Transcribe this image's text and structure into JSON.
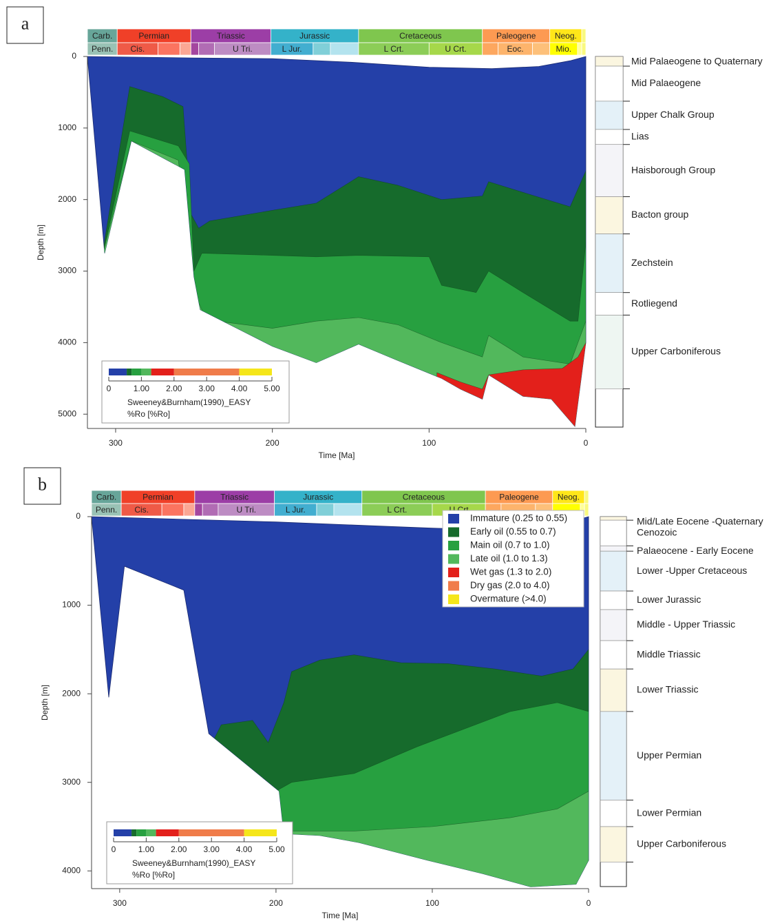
{
  "chart_data": [
    {
      "label": "a",
      "type": "burial",
      "xlabel": "Time [Ma]",
      "ylabel": "Depth [m]",
      "xlim": [
        318,
        0
      ],
      "ylim": [
        0,
        5200
      ],
      "xticks": [
        300,
        200,
        100,
        0
      ],
      "yticks": [
        0,
        1000,
        2000,
        3000,
        4000,
        5000
      ],
      "periods": [
        {
          "name": "Carb.",
          "color": "#67a599",
          "start": 318,
          "end": 299
        },
        {
          "name": "Permian",
          "color": "#f04028",
          "start": 299,
          "end": 252
        },
        {
          "name": "Triassic",
          "color": "#9c3ea6",
          "start": 252,
          "end": 201
        },
        {
          "name": "Jurassic",
          "color": "#34b2c9",
          "start": 201,
          "end": 145
        },
        {
          "name": "Cretaceous",
          "color": "#7fc64e",
          "start": 145,
          "end": 66
        },
        {
          "name": "Paleogene",
          "color": "#fd9a52",
          "start": 66,
          "end": 23
        },
        {
          "name": "Neog.",
          "color": "#ffe619",
          "start": 23,
          "end": 2.6
        },
        {
          "name": null,
          "color": "#f9f97f",
          "start": 2.6,
          "end": 0
        }
      ],
      "epochs": [
        {
          "name": "Penn.",
          "color": "#99c2b5",
          "start": 318,
          "end": 299
        },
        {
          "name": "Cis.",
          "color": "#ef5a47",
          "start": 299,
          "end": 273
        },
        {
          "name": null,
          "color": "#fb7460",
          "start": 273,
          "end": 259
        },
        {
          "name": null,
          "color": "#fba794",
          "start": 259,
          "end": 252
        },
        {
          "name": null,
          "color": "#a4469f",
          "start": 252,
          "end": 247
        },
        {
          "name": null,
          "color": "#b16cb4",
          "start": 247,
          "end": 237
        },
        {
          "name": "U Tri.",
          "color": "#bd8cc3",
          "start": 237,
          "end": 201
        },
        {
          "name": "L Jur.",
          "color": "#42aed0",
          "start": 201,
          "end": 174
        },
        {
          "name": null,
          "color": "#80cfd8",
          "start": 174,
          "end": 163
        },
        {
          "name": null,
          "color": "#b3e3ee",
          "start": 163,
          "end": 145
        },
        {
          "name": "L Crt.",
          "color": "#8ccd57",
          "start": 145,
          "end": 100
        },
        {
          "name": "U Crt.",
          "color": "#a6d84a",
          "start": 100,
          "end": 66
        },
        {
          "name": null,
          "color": "#fda75f",
          "start": 66,
          "end": 56
        },
        {
          "name": "Eoc.",
          "color": "#fdb46c",
          "start": 56,
          "end": 34
        },
        {
          "name": null,
          "color": "#fdc07a",
          "start": 34,
          "end": 23
        },
        {
          "name": "Mio.",
          "color": "#ffff00",
          "start": 23,
          "end": 5.3
        },
        {
          "name": null,
          "color": "#ffff99",
          "start": 5.3,
          "end": 2.6
        },
        {
          "name": null,
          "color": "#f9f97f",
          "start": 2.6,
          "end": 0
        }
      ],
      "envelope": {
        "color": "#2440a8",
        "x": [
          318,
          250,
          200,
          150,
          100,
          60,
          30,
          10,
          0,
          0,
          7,
          22,
          40,
          62,
          66,
          80,
          92,
          120,
          145,
          172,
          200,
          246,
          250,
          256,
          290,
          307
        ],
        "y": [
          0,
          20,
          30,
          80,
          150,
          170,
          140,
          60,
          0,
          4000,
          5170,
          4790,
          4750,
          4450,
          4790,
          4650,
          4500,
          4250,
          4020,
          4280,
          4050,
          3540,
          3080,
          1580,
          1180,
          2750
        ]
      },
      "zones": [
        {
          "color": "#166b2c",
          "x": [
            308,
            291,
            270,
            257,
            252,
            247,
            240,
            200,
            172,
            145,
            120,
            92,
            66,
            62,
            40,
            10,
            0
          ],
          "y": [
            2700,
            420,
            560,
            700,
            2200,
            2400,
            2300,
            2150,
            2050,
            1680,
            1800,
            2000,
            1950,
            1750,
            1900,
            2100,
            1600
          ]
        },
        {
          "color": "#27a040",
          "x": [
            308,
            291,
            260,
            253,
            250,
            245,
            200,
            172,
            145,
            100,
            92,
            70,
            62,
            40,
            10,
            5,
            0
          ],
          "y": [
            2750,
            1040,
            1250,
            1500,
            3000,
            2750,
            2780,
            2800,
            2780,
            2800,
            3200,
            3300,
            3000,
            3300,
            3700,
            3700,
            2600
          ]
        },
        {
          "color": "#52b85c",
          "x": [
            308,
            290,
            260,
            250,
            242,
            200,
            172,
            145,
            120,
            92,
            66,
            62,
            40,
            10,
            0
          ],
          "y": [
            2750,
            1180,
            1450,
            3300,
            3680,
            3800,
            3700,
            3650,
            3750,
            4000,
            4200,
            3900,
            4200,
            4300,
            3700
          ]
        },
        {
          "color": "#e3201b",
          "x": [
            95,
            80,
            66,
            62,
            40,
            15,
            5,
            0
          ],
          "y": [
            4420,
            4550,
            4650,
            4450,
            4380,
            4360,
            4200,
            4000
          ]
        }
      ],
      "colorbar": {
        "lim": [
          0,
          5
        ],
        "stops": [
          0,
          0.55,
          0.7,
          1.0,
          1.3,
          2.0,
          4.0,
          5.0
        ],
        "colors": [
          "#2440a8",
          "#166b2c",
          "#27a040",
          "#52b85c",
          "#e3201b",
          "#f07c4a",
          "#f5e61a"
        ],
        "ticks": [
          0,
          {
            "value": 1,
            "label": "1.00"
          },
          {
            "value": 2,
            "label": "2.00"
          },
          {
            "value": 3,
            "label": "3.00"
          },
          {
            "value": 4,
            "label": "4.00"
          },
          {
            "value": 5,
            "label": "5.00"
          }
        ],
        "label": "Sweeney&Burnham(1990)_EASY",
        "unit": "%Ro [%Ro]"
      },
      "column": [
        {
          "name": "Mid Palaeogene to Quaternary",
          "top": 0,
          "base": 135,
          "color": "#fbf6e0"
        },
        {
          "name": "Mid Palaeogene",
          "top": 135,
          "base": 625,
          "color": "#ffffff"
        },
        {
          "name": "Upper Chalk Group",
          "top": 625,
          "base": 1020,
          "color": "#e4f1f8"
        },
        {
          "name": "Lias",
          "top": 1020,
          "base": 1230,
          "color": "#ffffff"
        },
        {
          "name": "Haisborough Group",
          "top": 1230,
          "base": 1960,
          "color": "#f4f4f8"
        },
        {
          "name": "Bacton group",
          "top": 1960,
          "base": 2480,
          "color": "#fbf6e0"
        },
        {
          "name": "Zechstein",
          "top": 2480,
          "base": 3300,
          "color": "#e4f1f8"
        },
        {
          "name": "Rotliegend",
          "top": 3300,
          "base": 3615,
          "color": "#ffffff"
        },
        {
          "name": "Upper Carboniferous",
          "top": 3615,
          "base": 4645,
          "color": "#eef6f2"
        }
      ]
    },
    {
      "label": "b",
      "type": "burial",
      "xlabel": "Time [Ma]",
      "ylabel": "Depth [m]",
      "xlim": [
        318,
        0
      ],
      "ylim": [
        0,
        4200
      ],
      "xticks": [
        300,
        200,
        100,
        0
      ],
      "yticks": [
        0,
        1000,
        2000,
        3000,
        4000
      ],
      "periods": [
        {
          "name": "Carb.",
          "color": "#67a599",
          "start": 318,
          "end": 299
        },
        {
          "name": "Permian",
          "color": "#f04028",
          "start": 299,
          "end": 252
        },
        {
          "name": "Triassic",
          "color": "#9c3ea6",
          "start": 252,
          "end": 201
        },
        {
          "name": "Jurassic",
          "color": "#34b2c9",
          "start": 201,
          "end": 145
        },
        {
          "name": "Cretaceous",
          "color": "#7fc64e",
          "start": 145,
          "end": 66
        },
        {
          "name": "Paleogene",
          "color": "#fd9a52",
          "start": 66,
          "end": 23
        },
        {
          "name": "Neog.",
          "color": "#ffe619",
          "start": 23,
          "end": 2.6
        },
        {
          "name": null,
          "color": "#f9f97f",
          "start": 2.6,
          "end": 0
        }
      ],
      "epochs": [
        {
          "name": "Penn.",
          "color": "#99c2b5",
          "start": 318,
          "end": 299
        },
        {
          "name": "Cis.",
          "color": "#ef5a47",
          "start": 299,
          "end": 273
        },
        {
          "name": null,
          "color": "#fb7460",
          "start": 273,
          "end": 259
        },
        {
          "name": null,
          "color": "#fba794",
          "start": 259,
          "end": 252
        },
        {
          "name": null,
          "color": "#a4469f",
          "start": 252,
          "end": 247
        },
        {
          "name": null,
          "color": "#b16cb4",
          "start": 247,
          "end": 237
        },
        {
          "name": "U Tri.",
          "color": "#bd8cc3",
          "start": 237,
          "end": 201
        },
        {
          "name": "L Jur.",
          "color": "#42aed0",
          "start": 201,
          "end": 174
        },
        {
          "name": null,
          "color": "#80cfd8",
          "start": 174,
          "end": 163
        },
        {
          "name": null,
          "color": "#b3e3ee",
          "start": 163,
          "end": 145
        },
        {
          "name": "L Crt.",
          "color": "#8ccd57",
          "start": 145,
          "end": 100
        },
        {
          "name": "U Crt",
          "color": "#a6d84a",
          "start": 100,
          "end": 66
        },
        {
          "name": null,
          "color": "#fda75f",
          "start": 66,
          "end": 56
        },
        {
          "name": null,
          "color": "#fdb46c",
          "start": 56,
          "end": 34
        },
        {
          "name": null,
          "color": "#fdc07a",
          "start": 34,
          "end": 23
        },
        {
          "name": null,
          "color": "#ffff00",
          "start": 23,
          "end": 5.3
        },
        {
          "name": null,
          "color": "#ffff99",
          "start": 5.3,
          "end": 2.6
        },
        {
          "name": null,
          "color": "#f9f97f",
          "start": 2.6,
          "end": 0
        }
      ],
      "envelope": {
        "color": "#2440a8",
        "x": [
          318,
          200,
          100,
          50,
          20,
          0,
          0,
          8,
          37,
          68,
          103,
          147,
          172,
          195,
          198,
          243,
          259,
          297,
          307
        ],
        "y": [
          0,
          60,
          130,
          150,
          100,
          0,
          3880,
          4150,
          4180,
          4030,
          3880,
          3680,
          3600,
          3580,
          3100,
          2450,
          830,
          560,
          2040
        ]
      },
      "zones": [
        {
          "color": "#166b2c",
          "x": [
            245,
            235,
            215,
            205,
            195,
            190,
            172,
            150,
            120,
            90,
            60,
            30,
            10,
            0
          ],
          "y": [
            2700,
            2350,
            2300,
            2550,
            2100,
            1750,
            1620,
            1560,
            1650,
            1660,
            1720,
            1800,
            1720,
            1500
          ]
        },
        {
          "color": "#27a040",
          "x": [
            210,
            190,
            150,
            110,
            80,
            50,
            20,
            0
          ],
          "y": [
            3200,
            3000,
            2900,
            2600,
            2400,
            2200,
            2100,
            2200
          ]
        },
        {
          "color": "#52b85c",
          "x": [
            195,
            150,
            100,
            50,
            20,
            0
          ],
          "y": [
            3550,
            3550,
            3500,
            3400,
            3300,
            3100
          ]
        }
      ],
      "colorbar": {
        "lim": [
          0,
          5
        ],
        "stops": [
          0,
          0.55,
          0.7,
          1.0,
          1.3,
          2.0,
          4.0,
          5.0
        ],
        "colors": [
          "#2440a8",
          "#166b2c",
          "#27a040",
          "#52b85c",
          "#e3201b",
          "#f07c4a",
          "#f5e61a"
        ],
        "ticks": [
          0,
          {
            "value": 1,
            "label": "1.00"
          },
          {
            "value": 2,
            "label": "2.00"
          },
          {
            "value": 3,
            "label": "3.00"
          },
          {
            "value": 4,
            "label": "4.00"
          },
          {
            "value": 5,
            "label": "5.00"
          }
        ],
        "label": "Sweeney&Burnham(1990)_EASY",
        "unit": "%Ro [%Ro]"
      },
      "legend": [
        {
          "name": "Immature (0.25 to 0.55)",
          "color": "#2440a8"
        },
        {
          "name": "Early oil (0.55 to 0.7)",
          "color": "#166b2c"
        },
        {
          "name": "Main oil (0.7 to 1.0)",
          "color": "#27a040"
        },
        {
          "name": "Late oil (1.0 to 1.3)",
          "color": "#52b85c"
        },
        {
          "name": "Wet gas (1.3 to 2.0)",
          "color": "#e3201b"
        },
        {
          "name": "Dry gas (2.0 to 4.0)",
          "color": "#f07c4a"
        },
        {
          "name": "Overmature (>4.0)",
          "color": "#f5e61a"
        }
      ],
      "column": [
        {
          "name": "Mid/Late Eocene -Quaternary",
          "top": 0,
          "base": 40,
          "color": "#fbf6e0"
        },
        {
          "name": "Cenozoic",
          "top": 40,
          "base": 330,
          "color": "#ffffff"
        },
        {
          "name": "Palaeocene - Early Eocene",
          "top": 330,
          "base": 390,
          "color": "#f4f4f8"
        },
        {
          "name": "Lower  -Upper Cretaceous",
          "top": 390,
          "base": 840,
          "color": "#e4f1f8"
        },
        {
          "name": "Lower Jurassic",
          "top": 840,
          "base": 1050,
          "color": "#ffffff"
        },
        {
          "name": "Middle - Upper Triassic",
          "top": 1050,
          "base": 1400,
          "color": "#f4f4f8"
        },
        {
          "name": "Middle Triassic",
          "top": 1400,
          "base": 1720,
          "color": "#ffffff"
        },
        {
          "name": "Lower Triassic",
          "top": 1720,
          "base": 2200,
          "color": "#fbf6e0"
        },
        {
          "name": "Upper Permian",
          "top": 2200,
          "base": 3200,
          "color": "#e4f1f8"
        },
        {
          "name": "Lower Permian",
          "top": 3200,
          "base": 3500,
          "color": "#ffffff"
        },
        {
          "name": "Upper Carboniferous",
          "top": 3500,
          "base": 3900,
          "color": "#fbf6e0"
        }
      ]
    }
  ]
}
